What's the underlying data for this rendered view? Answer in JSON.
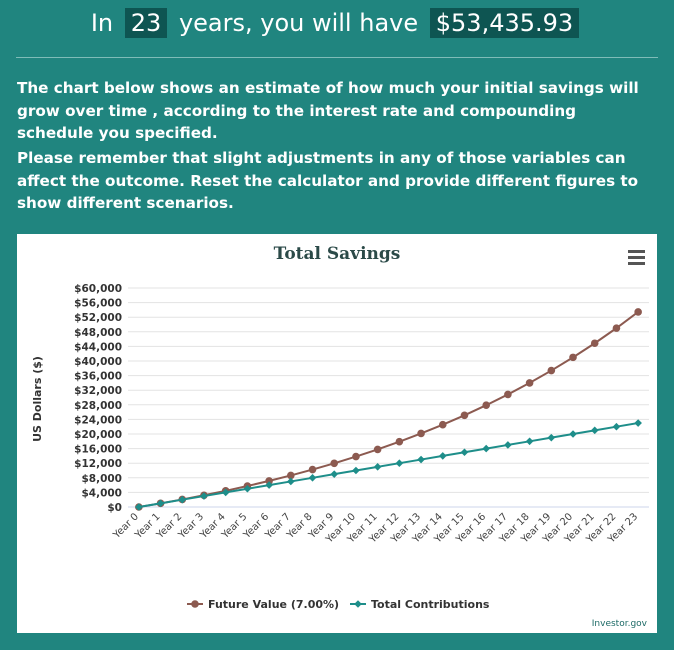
{
  "headline": {
    "prefix": "In",
    "years": "23",
    "middle": "years, you will have",
    "amount": "$53,435.93"
  },
  "paragraphs": [
    "The chart below shows an estimate of how much your initial savings will grow over time , according to the interest rate and compounding schedule you specified.",
    "Please remember that slight adjustments in any of those variables can affect the outcome. Reset the calculator and provide different figures to show different scenarios."
  ],
  "menu_icon": "hamburger-menu-icon",
  "credit": "Investor.gov",
  "colors": {
    "background": "#20857f",
    "future_value": "#8c5a50",
    "total_contributions": "#1e8e8a"
  },
  "chart_data": {
    "type": "line",
    "title": "Total Savings",
    "ylabel": "US Dollars ($)",
    "xlabel": "",
    "ylim": [
      0,
      60000
    ],
    "y_ticks": [
      0,
      4000,
      8000,
      12000,
      16000,
      20000,
      24000,
      28000,
      32000,
      36000,
      40000,
      44000,
      48000,
      52000,
      56000,
      60000
    ],
    "y_tick_labels": [
      "$0",
      "$4,000",
      "$8,000",
      "$12,000",
      "$16,000",
      "$20,000",
      "$24,000",
      "$28,000",
      "$32,000",
      "$36,000",
      "$40,000",
      "$44,000",
      "$48,000",
      "$52,000",
      "$56,000",
      "$60,000"
    ],
    "categories": [
      "Year 0",
      "Year 1",
      "Year 2",
      "Year 3",
      "Year 4",
      "Year 5",
      "Year 6",
      "Year 7",
      "Year 8",
      "Year 9",
      "Year 10",
      "Year 11",
      "Year 12",
      "Year 13",
      "Year 14",
      "Year 15",
      "Year 16",
      "Year 17",
      "Year 18",
      "Year 19",
      "Year 20",
      "Year 21",
      "Year 22",
      "Year 23"
    ],
    "series": [
      {
        "name": "Future Value (7.00%)",
        "color": "#8c5a50",
        "marker": "circle",
        "values": [
          0,
          1000,
          2070,
          3215,
          4440,
          5751,
          7153,
          8654,
          10260,
          11978,
          13816,
          15784,
          17888,
          20141,
          22550,
          25129,
          27888,
          30840,
          33999,
          37379,
          40995,
          44865,
          49006,
          53436
        ]
      },
      {
        "name": "Total Contributions",
        "color": "#1e8e8a",
        "marker": "diamond",
        "values": [
          0,
          1000,
          2000,
          3000,
          4000,
          5000,
          6000,
          7000,
          8000,
          9000,
          10000,
          11000,
          12000,
          13000,
          14000,
          15000,
          16000,
          17000,
          18000,
          19000,
          20000,
          21000,
          22000,
          23000
        ]
      }
    ],
    "grid": true,
    "legend": "bottom"
  }
}
